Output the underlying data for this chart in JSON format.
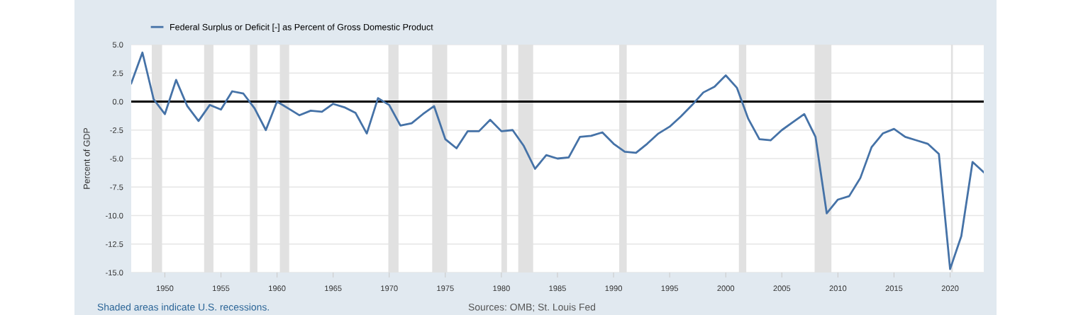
{
  "chart_data": {
    "type": "line",
    "ylabel": "Percent of GDP",
    "x": [
      1947,
      1948,
      1949,
      1950,
      1951,
      1952,
      1953,
      1954,
      1955,
      1956,
      1957,
      1958,
      1959,
      1960,
      1961,
      1962,
      1963,
      1964,
      1965,
      1966,
      1967,
      1968,
      1969,
      1970,
      1971,
      1972,
      1973,
      1974,
      1975,
      1976,
      1977,
      1978,
      1979,
      1980,
      1981,
      1982,
      1983,
      1984,
      1985,
      1986,
      1987,
      1988,
      1989,
      1990,
      1991,
      1992,
      1993,
      1994,
      1995,
      1996,
      1997,
      1998,
      1999,
      2000,
      2001,
      2002,
      2003,
      2004,
      2005,
      2006,
      2007,
      2008,
      2009,
      2010,
      2011,
      2012,
      2013,
      2014,
      2015,
      2016,
      2017,
      2018,
      2019,
      2020,
      2021,
      2022,
      2023
    ],
    "series": [
      {
        "name": "Federal Surplus or Deficit [-] as Percent of Gross Domestic Product",
        "color": "#4572a7",
        "values": [
          1.6,
          4.3,
          0.2,
          -1.1,
          1.9,
          -0.4,
          -1.7,
          -0.3,
          -0.7,
          0.9,
          0.7,
          -0.6,
          -2.5,
          0.0,
          -0.6,
          -1.2,
          -0.8,
          -0.9,
          -0.2,
          -0.5,
          -1.0,
          -2.8,
          0.3,
          -0.3,
          -2.1,
          -1.9,
          -1.1,
          -0.4,
          -3.3,
          -4.1,
          -2.6,
          -2.6,
          -1.6,
          -2.6,
          -2.5,
          -3.9,
          -5.9,
          -4.7,
          -5.0,
          -4.9,
          -3.1,
          -3.0,
          -2.7,
          -3.7,
          -4.4,
          -4.5,
          -3.7,
          -2.8,
          -2.2,
          -1.3,
          -0.3,
          0.8,
          1.3,
          2.3,
          1.2,
          -1.5,
          -3.3,
          -3.4,
          -2.5,
          -1.8,
          -1.1,
          -3.1,
          -9.8,
          -8.6,
          -8.3,
          -6.7,
          -4.0,
          -2.8,
          -2.4,
          -3.1,
          -3.4,
          -3.7,
          -4.6,
          -14.7,
          -11.8,
          -5.3,
          -6.2
        ]
      }
    ],
    "xlim": [
      1947,
      2023
    ],
    "xticks": [
      1950,
      1955,
      1960,
      1965,
      1970,
      1975,
      1980,
      1985,
      1990,
      1995,
      2000,
      2005,
      2010,
      2015,
      2020
    ],
    "ylim": [
      -15,
      5
    ],
    "yticks": [
      {
        "value": 5,
        "label": "5.0"
      },
      {
        "value": 2.5,
        "label": "2.5"
      },
      {
        "value": 0,
        "label": "0.0"
      },
      {
        "value": -2.5,
        "label": "-2.5"
      },
      {
        "value": -5,
        "label": "-5.0"
      },
      {
        "value": -7.5,
        "label": "-7.5"
      },
      {
        "value": -10,
        "label": "-10.0"
      },
      {
        "value": -12.5,
        "label": "-12.5"
      },
      {
        "value": -15,
        "label": "-15.0"
      }
    ],
    "grid": "y",
    "legend": "top left",
    "line_style": "solid",
    "marker": "none",
    "ref_lines": [
      {
        "axis": "y",
        "value": 0,
        "color": "#000000"
      }
    ],
    "bands": [
      {
        "axis": "x",
        "from": 1948.83,
        "to": 1949.75,
        "color": "#e1e1e1"
      },
      {
        "axis": "x",
        "from": 1953.5,
        "to": 1954.33,
        "color": "#e1e1e1"
      },
      {
        "axis": "x",
        "from": 1957.58,
        "to": 1958.25,
        "color": "#e1e1e1"
      },
      {
        "axis": "x",
        "from": 1960.25,
        "to": 1961.08,
        "color": "#e1e1e1"
      },
      {
        "axis": "x",
        "from": 1969.92,
        "to": 1970.83,
        "color": "#e1e1e1"
      },
      {
        "axis": "x",
        "from": 1973.83,
        "to": 1975.17,
        "color": "#e1e1e1"
      },
      {
        "axis": "x",
        "from": 1980.0,
        "to": 1980.5,
        "color": "#e1e1e1"
      },
      {
        "axis": "x",
        "from": 1981.5,
        "to": 1982.83,
        "color": "#e1e1e1"
      },
      {
        "axis": "x",
        "from": 1990.5,
        "to": 1991.17,
        "color": "#e1e1e1"
      },
      {
        "axis": "x",
        "from": 2001.17,
        "to": 2001.83,
        "color": "#e1e1e1"
      },
      {
        "axis": "x",
        "from": 2007.92,
        "to": 2009.42,
        "color": "#e1e1e1"
      },
      {
        "axis": "x",
        "from": 2020.08,
        "to": 2020.25,
        "color": "#e1e1e1"
      }
    ],
    "annotations": [
      "Shaded areas indicate U.S. recessions.",
      "Sources: OMB; St. Louis Fed"
    ]
  }
}
